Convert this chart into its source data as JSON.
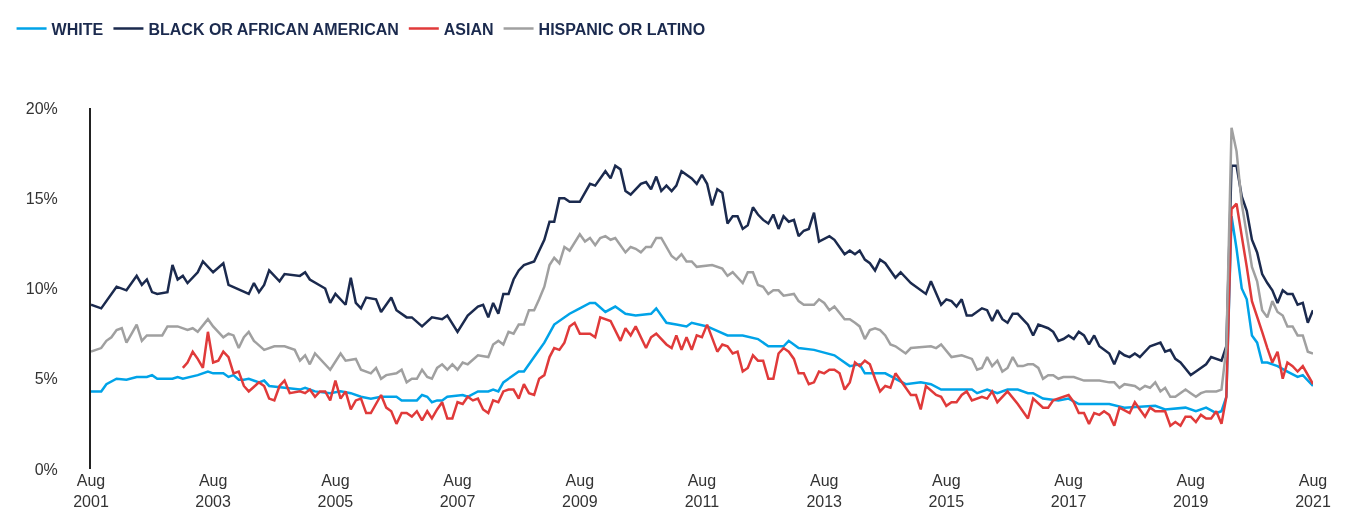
{
  "chart_data": {
    "type": "line",
    "legend": "top left",
    "marker": "none",
    "line_style": "solid",
    "xlim": [
      "2001-08",
      "2021-08"
    ],
    "xticks": [
      {
        "value": "2001-08",
        "label": "Aug\n2001"
      },
      {
        "value": "2003-08",
        "label": "Aug\n2003"
      },
      {
        "value": "2005-08",
        "label": "Aug\n2005"
      },
      {
        "value": "2007-08",
        "label": "Aug\n2007"
      },
      {
        "value": "2009-08",
        "label": "Aug\n2009"
      },
      {
        "value": "2011-08",
        "label": "Aug\n2011"
      },
      {
        "value": "2013-08",
        "label": "Aug\n2013"
      },
      {
        "value": "2015-08",
        "label": "Aug\n2015"
      },
      {
        "value": "2017-08",
        "label": "Aug\n2017"
      },
      {
        "value": "2019-08",
        "label": "Aug\n2019"
      },
      {
        "value": "2021-08",
        "label": "Aug\n2021"
      }
    ],
    "ylim": [
      0,
      20
    ],
    "yticks": [
      {
        "value": 0,
        "label": "0%"
      },
      {
        "value": 5,
        "label": "5%"
      },
      {
        "value": 10,
        "label": "10%"
      },
      {
        "value": 15,
        "label": "15%"
      },
      {
        "value": 20,
        "label": "20%"
      }
    ],
    "series": [
      {
        "name": "WHITE",
        "color": "#00a3e8",
        "x": [
          "2001-08",
          "2001-10",
          "2001-11",
          "2002-01",
          "2002-03",
          "2002-05",
          "2002-07",
          "2002-08",
          "2002-09",
          "2002-12",
          "2003-01",
          "2003-02",
          "2003-05",
          "2003-07",
          "2003-08",
          "2003-10",
          "2003-11",
          "2003-12",
          "2004-01",
          "2004-02",
          "2004-03",
          "2004-05",
          "2004-06",
          "2004-07",
          "2004-10",
          "2005-01",
          "2005-02",
          "2005-04",
          "2005-07",
          "2005-09",
          "2005-11",
          "2006-01",
          "2006-03",
          "2006-05",
          "2006-08",
          "2006-09",
          "2006-11",
          "2006-12",
          "2007-01",
          "2007-02",
          "2007-03",
          "2007-04",
          "2007-05",
          "2007-06",
          "2007-09",
          "2007-10",
          "2007-12",
          "2008-02",
          "2008-03",
          "2008-04",
          "2008-05",
          "2008-08",
          "2008-09",
          "2008-11",
          "2009-01",
          "2009-03",
          "2009-06",
          "2009-08",
          "2009-10",
          "2009-11",
          "2010-01",
          "2010-03",
          "2010-05",
          "2010-07",
          "2010-10",
          "2010-11",
          "2011-01",
          "2011-03",
          "2011-05",
          "2011-06",
          "2011-09",
          "2012-01",
          "2012-03",
          "2012-04",
          "2012-07",
          "2012-09",
          "2012-12",
          "2013-01",
          "2013-03",
          "2013-06",
          "2013-10",
          "2014-01",
          "2014-03",
          "2014-04",
          "2014-08",
          "2014-12",
          "2015-03",
          "2015-05",
          "2015-07",
          "2016-01",
          "2016-02",
          "2016-04",
          "2016-06",
          "2016-08",
          "2016-10",
          "2016-12",
          "2017-01",
          "2017-03",
          "2017-06",
          "2017-08",
          "2017-10",
          "2018-01",
          "2018-04",
          "2018-07",
          "2019-01",
          "2019-03",
          "2019-07",
          "2019-09",
          "2019-11",
          "2020-01",
          "2020-02",
          "2020-03",
          "2020-04",
          "2020-05",
          "2020-06",
          "2020-07",
          "2020-08",
          "2020-09",
          "2020-10",
          "2020-11",
          "2021-01",
          "2021-03",
          "2021-05",
          "2021-06",
          "2021-08"
        ],
        "values": [
          4.3,
          4.3,
          4.7,
          5.0,
          4.95,
          5.1,
          5.1,
          5.2,
          5.0,
          5.0,
          5.1,
          5.0,
          5.2,
          5.4,
          5.3,
          5.3,
          5.1,
          5.2,
          4.95,
          4.95,
          5.0,
          4.8,
          4.9,
          4.6,
          4.5,
          4.4,
          4.5,
          4.3,
          4.2,
          4.3,
          4.2,
          4.0,
          3.9,
          4.0,
          4.0,
          3.8,
          3.8,
          3.8,
          4.1,
          4.0,
          3.7,
          3.8,
          3.8,
          4.0,
          4.1,
          4.0,
          4.3,
          4.3,
          4.4,
          4.3,
          4.8,
          5.4,
          5.4,
          6.2,
          7.0,
          8.0,
          8.6,
          8.9,
          9.2,
          9.2,
          8.7,
          9.0,
          8.6,
          8.5,
          8.6,
          8.9,
          8.1,
          8.0,
          7.9,
          8.1,
          7.9,
          7.4,
          7.4,
          7.4,
          7.2,
          6.8,
          6.8,
          7.1,
          6.7,
          6.6,
          6.3,
          5.7,
          5.8,
          5.3,
          5.3,
          4.7,
          4.8,
          4.7,
          4.4,
          4.4,
          4.2,
          4.4,
          4.2,
          4.4,
          4.4,
          4.2,
          4.2,
          3.9,
          3.8,
          3.9,
          3.6,
          3.6,
          3.6,
          3.4,
          3.5,
          3.3,
          3.4,
          3.2,
          3.4,
          3.1,
          3.2,
          4.0,
          14.0,
          12.2,
          10.0,
          9.4,
          7.4,
          7.0,
          5.9,
          5.9,
          5.7,
          5.4,
          5.1,
          5.2,
          4.6
        ]
      },
      {
        "name": "BLACK OR AFRICAN AMERICAN",
        "color": "#1b2a4e",
        "x": [
          "2001-08",
          "2001-10",
          "2002-01",
          "2002-03",
          "2002-05",
          "2002-06",
          "2002-07",
          "2002-08",
          "2002-09",
          "2002-11",
          "2002-12",
          "2003-01",
          "2003-02",
          "2003-03",
          "2003-05",
          "2003-06",
          "2003-08",
          "2003-10",
          "2003-11",
          "2004-03",
          "2004-04",
          "2004-05",
          "2004-06",
          "2004-07",
          "2004-09",
          "2004-10",
          "2005-01",
          "2005-02",
          "2005-03",
          "2005-06",
          "2005-07",
          "2005-08",
          "2005-10",
          "2005-11",
          "2005-12",
          "2006-01",
          "2006-02",
          "2006-04",
          "2006-05",
          "2006-07",
          "2006-08",
          "2006-10",
          "2006-11",
          "2007-01",
          "2007-03",
          "2007-05",
          "2007-06",
          "2007-08",
          "2007-10",
          "2007-12",
          "2008-01",
          "2008-02",
          "2008-03",
          "2008-04",
          "2008-05",
          "2008-06",
          "2008-07",
          "2008-08",
          "2008-09",
          "2008-11",
          "2009-01",
          "2009-02",
          "2009-03",
          "2009-04",
          "2009-05",
          "2009-06",
          "2009-08",
          "2009-10",
          "2009-11",
          "2010-01",
          "2010-02",
          "2010-03",
          "2010-04",
          "2010-05",
          "2010-06",
          "2010-08",
          "2010-09",
          "2010-10",
          "2010-11",
          "2010-12",
          "2011-01",
          "2011-02",
          "2011-03",
          "2011-04",
          "2011-06",
          "2011-07",
          "2011-08",
          "2011-09",
          "2011-10",
          "2011-11",
          "2011-12",
          "2012-01",
          "2012-02",
          "2012-03",
          "2012-04",
          "2012-05",
          "2012-06",
          "2012-07",
          "2012-08",
          "2012-09",
          "2012-10",
          "2012-11",
          "2012-12",
          "2013-01",
          "2013-02",
          "2013-03",
          "2013-04",
          "2013-05",
          "2013-06",
          "2013-07",
          "2013-09",
          "2013-10",
          "2013-12",
          "2014-01",
          "2014-02",
          "2014-03",
          "2014-04",
          "2014-05",
          "2014-06",
          "2014-07",
          "2014-08",
          "2014-10",
          "2014-11",
          "2015-01",
          "2015-04",
          "2015-05",
          "2015-07",
          "2015-08",
          "2015-09",
          "2015-10",
          "2015-11",
          "2015-12",
          "2016-01",
          "2016-03",
          "2016-04",
          "2016-05",
          "2016-06",
          "2016-07",
          "2016-08",
          "2016-09",
          "2016-10",
          "2016-12",
          "2017-01",
          "2017-02",
          "2017-04",
          "2017-05",
          "2017-06",
          "2017-07",
          "2017-08",
          "2017-09",
          "2017-10",
          "2017-11",
          "2017-12",
          "2018-01",
          "2018-02",
          "2018-04",
          "2018-05",
          "2018-06",
          "2018-07",
          "2018-08",
          "2018-09",
          "2018-10",
          "2018-12",
          "2019-02",
          "2019-03",
          "2019-04",
          "2019-05",
          "2019-06",
          "2019-08",
          "2019-09",
          "2019-11",
          "2019-12",
          "2020-02",
          "2020-03",
          "2020-04",
          "2020-05",
          "2020-06",
          "2020-07",
          "2020-08",
          "2020-09",
          "2020-10",
          "2020-11",
          "2020-12",
          "2021-01",
          "2021-02",
          "2021-03",
          "2021-04",
          "2021-05",
          "2021-06",
          "2021-07",
          "2021-08"
        ],
        "values": [
          9.1,
          8.9,
          10.1,
          9.9,
          10.7,
          10.2,
          10.5,
          9.8,
          9.7,
          9.8,
          11.3,
          10.5,
          10.7,
          10.3,
          10.9,
          11.5,
          10.9,
          11.4,
          10.2,
          9.7,
          10.3,
          9.8,
          10.2,
          11.0,
          10.4,
          10.8,
          10.7,
          10.9,
          10.5,
          10.0,
          9.2,
          9.7,
          9.1,
          10.6,
          9.2,
          8.9,
          9.5,
          9.4,
          8.7,
          9.5,
          8.8,
          8.4,
          8.4,
          7.9,
          8.4,
          8.3,
          8.5,
          7.6,
          8.5,
          9.0,
          9.1,
          8.4,
          9.2,
          8.6,
          9.7,
          9.7,
          10.5,
          11.0,
          11.3,
          11.5,
          12.7,
          13.7,
          13.7,
          15.0,
          15.0,
          14.8,
          14.8,
          15.8,
          15.7,
          16.5,
          16.1,
          16.8,
          16.6,
          15.4,
          15.2,
          15.8,
          15.9,
          15.5,
          16.2,
          15.4,
          15.7,
          15.4,
          15.7,
          16.5,
          16.1,
          15.8,
          16.3,
          15.8,
          14.6,
          15.5,
          15.3,
          13.6,
          14.0,
          14.0,
          13.3,
          13.5,
          14.5,
          14.1,
          13.8,
          13.6,
          14.1,
          13.3,
          14.0,
          13.7,
          13.8,
          12.9,
          13.2,
          13.3,
          14.2,
          12.6,
          12.9,
          12.7,
          11.9,
          12.1,
          11.9,
          12.1,
          11.6,
          11.4,
          11.0,
          11.6,
          11.4,
          10.6,
          10.9,
          10.3,
          9.7,
          10.4,
          9.1,
          9.4,
          9.3,
          9.0,
          9.4,
          8.5,
          8.5,
          8.9,
          8.8,
          8.2,
          8.8,
          8.3,
          8.1,
          8.6,
          8.6,
          8.0,
          7.4,
          8.0,
          7.8,
          7.6,
          7.1,
          7.2,
          7.4,
          7.2,
          7.6,
          7.4,
          6.9,
          7.4,
          6.8,
          6.4,
          5.8,
          6.5,
          6.3,
          6.2,
          6.4,
          6.2,
          6.8,
          7.0,
          6.5,
          6.6,
          6.1,
          5.9,
          5.2,
          5.4,
          5.8,
          6.2,
          6.0,
          6.8,
          16.8,
          16.8,
          15.1,
          14.3,
          12.7,
          12.0,
          10.8,
          10.3,
          9.9,
          9.2,
          9.9,
          9.7,
          9.7,
          9.1,
          9.2,
          8.1,
          8.8
        ]
      },
      {
        "name": "ASIAN",
        "color": "#e03a3a",
        "x": [
          "2003-02",
          "2003-03",
          "2003-04",
          "2003-05",
          "2003-06",
          "2003-07",
          "2003-08",
          "2003-09",
          "2003-10",
          "2003-11",
          "2003-12",
          "2004-01",
          "2004-02",
          "2004-03",
          "2004-05",
          "2004-06",
          "2004-07",
          "2004-08",
          "2004-09",
          "2004-10",
          "2004-11",
          "2005-01",
          "2005-02",
          "2005-03",
          "2005-04",
          "2005-05",
          "2005-06",
          "2005-07",
          "2005-08",
          "2005-09",
          "2005-10",
          "2005-11",
          "2005-12",
          "2006-01",
          "2006-02",
          "2006-03",
          "2006-05",
          "2006-06",
          "2006-07",
          "2006-08",
          "2006-09",
          "2006-10",
          "2006-11",
          "2006-12",
          "2007-01",
          "2007-02",
          "2007-03",
          "2007-04",
          "2007-05",
          "2007-06",
          "2007-07",
          "2007-08",
          "2007-09",
          "2007-10",
          "2007-11",
          "2007-12",
          "2008-01",
          "2008-02",
          "2008-03",
          "2008-04",
          "2008-05",
          "2008-06",
          "2008-07",
          "2008-08",
          "2008-09",
          "2008-10",
          "2008-11",
          "2008-12",
          "2009-01",
          "2009-02",
          "2009-03",
          "2009-04",
          "2009-05",
          "2009-06",
          "2009-07",
          "2009-08",
          "2009-10",
          "2009-11",
          "2009-12",
          "2010-02",
          "2010-04",
          "2010-05",
          "2010-06",
          "2010-07",
          "2010-09",
          "2010-10",
          "2010-11",
          "2011-01",
          "2011-02",
          "2011-03",
          "2011-04",
          "2011-05",
          "2011-06",
          "2011-07",
          "2011-08",
          "2011-09",
          "2011-11",
          "2011-12",
          "2012-01",
          "2012-02",
          "2012-03",
          "2012-04",
          "2012-05",
          "2012-06",
          "2012-07",
          "2012-08",
          "2012-09",
          "2012-10",
          "2012-11",
          "2012-12",
          "2013-01",
          "2013-02",
          "2013-03",
          "2013-04",
          "2013-05",
          "2013-06",
          "2013-07",
          "2013-08",
          "2013-09",
          "2013-10",
          "2013-11",
          "2013-12",
          "2014-01",
          "2014-02",
          "2014-03",
          "2014-04",
          "2014-05",
          "2014-06",
          "2014-07",
          "2014-08",
          "2014-09",
          "2014-10",
          "2014-11",
          "2015-01",
          "2015-02",
          "2015-03",
          "2015-04",
          "2015-06",
          "2015-07",
          "2015-08",
          "2015-09",
          "2015-10",
          "2015-11",
          "2015-12",
          "2016-01",
          "2016-03",
          "2016-04",
          "2016-05",
          "2016-06",
          "2016-08",
          "2016-10",
          "2016-12",
          "2017-01",
          "2017-03",
          "2017-04",
          "2017-05",
          "2017-08",
          "2017-09",
          "2017-10",
          "2017-11",
          "2017-12",
          "2018-01",
          "2018-02",
          "2018-03",
          "2018-04",
          "2018-05",
          "2018-06",
          "2018-08",
          "2018-09",
          "2018-10",
          "2018-11",
          "2018-12",
          "2019-01",
          "2019-03",
          "2019-04",
          "2019-05",
          "2019-06",
          "2019-07",
          "2019-08",
          "2019-09",
          "2019-10",
          "2019-11",
          "2019-12",
          "2020-01",
          "2020-02",
          "2020-03",
          "2020-04",
          "2020-05",
          "2020-06",
          "2020-07",
          "2020-08",
          "2020-10",
          "2020-11",
          "2020-12",
          "2021-01",
          "2021-02",
          "2021-03",
          "2021-04",
          "2021-05",
          "2021-06",
          "2021-08"
        ],
        "values": [
          5.6,
          5.9,
          6.5,
          6.1,
          5.6,
          7.6,
          5.9,
          6.0,
          6.5,
          6.2,
          5.3,
          5.4,
          4.6,
          4.3,
          4.8,
          4.6,
          3.9,
          3.8,
          4.6,
          4.9,
          4.2,
          4.3,
          4.2,
          4.4,
          4.0,
          4.3,
          4.3,
          3.8,
          4.9,
          3.9,
          4.3,
          3.3,
          3.8,
          3.9,
          3.1,
          3.1,
          4.1,
          3.4,
          3.2,
          2.5,
          3.1,
          3.1,
          2.9,
          3.2,
          2.7,
          3.2,
          2.8,
          3.3,
          3.7,
          2.8,
          2.8,
          3.7,
          3.6,
          4.0,
          3.8,
          3.9,
          3.3,
          3.1,
          3.8,
          3.7,
          4.3,
          4.4,
          4.4,
          3.9,
          4.7,
          4.2,
          4.1,
          5.0,
          5.2,
          6.2,
          6.7,
          6.6,
          7.0,
          7.9,
          8.1,
          7.5,
          7.5,
          7.3,
          8.4,
          8.2,
          7.1,
          7.8,
          7.4,
          7.9,
          6.7,
          7.3,
          7.5,
          6.9,
          6.7,
          7.4,
          6.6,
          7.3,
          6.6,
          7.4,
          7.3,
          8.0,
          6.5,
          6.9,
          6.8,
          6.4,
          6.5,
          5.4,
          5.6,
          6.3,
          6.0,
          6.0,
          5.0,
          5.0,
          6.4,
          6.7,
          6.5,
          6.1,
          5.3,
          5.3,
          4.7,
          4.8,
          5.4,
          5.3,
          5.5,
          5.5,
          5.3,
          4.4,
          4.8,
          5.9,
          5.7,
          6.0,
          5.8,
          5.0,
          4.3,
          4.6,
          4.5,
          5.3,
          4.9,
          4.1,
          4.1,
          3.3,
          4.6,
          4.1,
          4.0,
          3.5,
          3.7,
          3.7,
          4.1,
          4.3,
          3.8,
          4.0,
          3.9,
          4.3,
          3.7,
          4.3,
          3.6,
          2.8,
          3.9,
          3.4,
          3.4,
          3.8,
          4.1,
          3.7,
          3.1,
          3.1,
          2.5,
          3.1,
          3.0,
          3.2,
          3.0,
          2.4,
          3.4,
          3.1,
          3.7,
          3.3,
          2.9,
          3.4,
          3.2,
          3.2,
          2.4,
          2.6,
          2.4,
          2.9,
          2.9,
          2.6,
          3.0,
          2.8,
          2.8,
          3.2,
          2.5,
          4.0,
          14.4,
          14.7,
          12.9,
          11.2,
          9.3,
          7.6,
          6.7,
          5.9,
          6.5,
          5.0,
          5.9,
          5.7,
          5.4,
          5.7,
          4.7
        ]
      },
      {
        "name": "HISPANIC OR LATINO",
        "color": "#a0a0a0",
        "x": [
          "2001-08",
          "2001-10",
          "2001-11",
          "2001-12",
          "2002-01",
          "2002-02",
          "2002-03",
          "2002-04",
          "2002-05",
          "2002-06",
          "2002-07",
          "2002-09",
          "2002-10",
          "2002-11",
          "2003-01",
          "2003-03",
          "2003-04",
          "2003-05",
          "2003-07",
          "2003-08",
          "2003-10",
          "2003-11",
          "2003-12",
          "2004-01",
          "2004-02",
          "2004-03",
          "2004-04",
          "2004-06",
          "2004-08",
          "2004-10",
          "2004-12",
          "2005-01",
          "2005-02",
          "2005-03",
          "2005-04",
          "2005-07",
          "2005-09",
          "2005-10",
          "2005-12",
          "2006-01",
          "2006-03",
          "2006-04",
          "2006-05",
          "2006-06",
          "2006-08",
          "2006-09",
          "2006-10",
          "2006-11",
          "2006-12",
          "2007-01",
          "2007-02",
          "2007-03",
          "2007-04",
          "2007-05",
          "2007-06",
          "2007-07",
          "2007-08",
          "2007-09",
          "2007-10",
          "2007-12",
          "2008-02",
          "2008-03",
          "2008-04",
          "2008-05",
          "2008-06",
          "2008-07",
          "2008-08",
          "2008-09",
          "2008-10",
          "2008-11",
          "2008-12",
          "2009-01",
          "2009-02",
          "2009-03",
          "2009-04",
          "2009-05",
          "2009-06",
          "2009-08",
          "2009-09",
          "2009-10",
          "2009-11",
          "2009-12",
          "2010-01",
          "2010-02",
          "2010-03",
          "2010-05",
          "2010-06",
          "2010-07",
          "2010-08",
          "2010-09",
          "2010-10",
          "2010-11",
          "2010-12",
          "2011-02",
          "2011-03",
          "2011-04",
          "2011-05",
          "2011-06",
          "2011-07",
          "2011-10",
          "2011-12",
          "2012-01",
          "2012-02",
          "2012-04",
          "2012-05",
          "2012-06",
          "2012-07",
          "2012-08",
          "2012-09",
          "2012-10",
          "2012-11",
          "2012-12",
          "2013-02",
          "2013-03",
          "2013-04",
          "2013-06",
          "2013-07",
          "2013-08",
          "2013-09",
          "2013-10",
          "2013-12",
          "2014-01",
          "2014-02",
          "2014-03",
          "2014-04",
          "2014-05",
          "2014-06",
          "2014-07",
          "2014-08",
          "2014-09",
          "2014-10",
          "2014-12",
          "2015-01",
          "2015-05",
          "2015-06",
          "2015-07",
          "2015-09",
          "2015-11",
          "2016-01",
          "2016-02",
          "2016-03",
          "2016-04",
          "2016-05",
          "2016-06",
          "2016-07",
          "2016-08",
          "2016-09",
          "2016-10",
          "2016-11",
          "2016-12",
          "2017-01",
          "2017-02",
          "2017-03",
          "2017-04",
          "2017-05",
          "2017-06",
          "2017-07",
          "2017-09",
          "2017-11",
          "2017-12",
          "2018-02",
          "2018-04",
          "2018-05",
          "2018-06",
          "2018-07",
          "2018-09",
          "2018-10",
          "2018-11",
          "2018-12",
          "2019-01",
          "2019-02",
          "2019-03",
          "2019-04",
          "2019-05",
          "2019-07",
          "2019-08",
          "2019-09",
          "2019-10",
          "2019-11",
          "2020-01",
          "2020-02",
          "2020-03",
          "2020-04",
          "2020-05",
          "2020-06",
          "2020-07",
          "2020-08",
          "2020-09",
          "2020-10",
          "2020-11",
          "2020-12",
          "2021-01",
          "2021-02",
          "2021-03",
          "2021-04",
          "2021-05",
          "2021-06",
          "2021-07",
          "2021-08"
        ],
        "values": [
          6.5,
          6.7,
          7.1,
          7.3,
          7.7,
          7.8,
          7.0,
          7.5,
          8.0,
          7.1,
          7.4,
          7.4,
          7.4,
          7.9,
          7.9,
          7.7,
          7.8,
          7.6,
          8.3,
          7.9,
          7.3,
          7.5,
          7.4,
          6.7,
          7.3,
          7.6,
          7.1,
          6.6,
          6.8,
          6.8,
          6.6,
          6.0,
          6.3,
          5.8,
          6.4,
          5.5,
          6.4,
          6.0,
          6.1,
          5.5,
          5.3,
          5.6,
          5.0,
          5.2,
          5.3,
          5.5,
          4.8,
          5.0,
          5.0,
          5.5,
          5.1,
          5.0,
          5.6,
          5.8,
          5.5,
          5.8,
          5.5,
          5.9,
          5.8,
          6.3,
          6.2,
          6.9,
          7.1,
          6.9,
          7.6,
          7.5,
          8.0,
          8.0,
          8.8,
          8.8,
          9.4,
          10.1,
          11.3,
          11.7,
          11.4,
          12.3,
          12.1,
          13.0,
          12.6,
          12.8,
          12.4,
          12.8,
          12.9,
          12.7,
          12.8,
          12.0,
          12.3,
          12.2,
          12.0,
          12.3,
          12.3,
          12.8,
          12.8,
          11.8,
          11.6,
          11.9,
          11.5,
          11.5,
          11.2,
          11.3,
          11.1,
          10.7,
          10.9,
          10.3,
          10.9,
          10.9,
          10.2,
          10.1,
          9.7,
          9.9,
          9.9,
          9.6,
          9.7,
          9.3,
          9.1,
          9.1,
          9.4,
          9.2,
          8.8,
          9.0,
          8.3,
          8.3,
          8.1,
          7.9,
          7.2,
          7.7,
          7.8,
          7.7,
          7.4,
          6.9,
          6.8,
          6.4,
          6.7,
          6.8,
          6.7,
          6.9,
          6.2,
          6.3,
          6.1,
          5.5,
          5.6,
          6.2,
          5.7,
          6.0,
          5.4,
          5.6,
          6.2,
          5.7,
          5.7,
          5.8,
          5.8,
          5.6,
          5.0,
          5.2,
          5.2,
          5.0,
          5.1,
          5.1,
          4.9,
          4.9,
          4.9,
          4.8,
          4.8,
          4.5,
          4.7,
          4.6,
          4.4,
          4.6,
          4.5,
          4.8,
          4.3,
          4.5,
          4.0,
          4.0,
          4.4,
          4.2,
          4.0,
          4.2,
          4.3,
          4.3,
          4.4,
          6.7,
          18.9,
          17.6,
          14.7,
          13.0,
          11.2,
          10.4,
          8.8,
          8.4,
          9.3,
          8.7,
          8.5,
          7.9,
          7.9,
          7.4,
          7.4,
          6.5,
          6.4
        ]
      }
    ]
  }
}
